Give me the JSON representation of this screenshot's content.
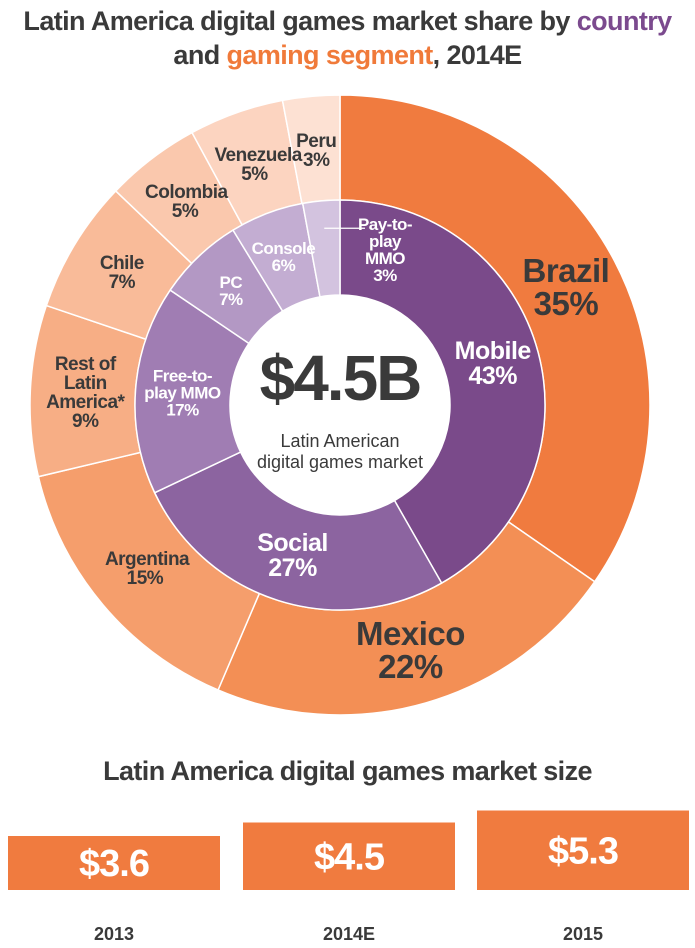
{
  "chart_data": [
    {
      "type": "donut",
      "title": [
        "Latin America digital games market share by ",
        "country",
        " and ",
        "gaming segment",
        ", 2014E"
      ],
      "title_colors": [
        "#3a3a3a",
        "#7b4a8e",
        "#3a3a3a",
        "#f07a3a",
        "#3a3a3a"
      ],
      "center_value": "$4.5B",
      "center_label": "Latin American digital games market",
      "outer": {
        "categories": [
          "Brazil",
          "Mexico",
          "Argentina",
          "Rest of Latin America*",
          "Chile",
          "Colombia",
          "Venezuela",
          "Peru"
        ],
        "values": [
          35,
          22,
          15,
          9,
          7,
          5,
          5,
          3
        ],
        "value_labels": [
          "35%",
          "22%",
          "15%",
          "9%",
          "7%",
          "5%",
          "5%",
          "3%"
        ],
        "colors": [
          "#f07b3f",
          "#f38f55",
          "#f59e6c",
          "#f7ae85",
          "#f9bb99",
          "#fac8ad",
          "#fcd4c0",
          "#fde1d3"
        ]
      },
      "inner": {
        "categories": [
          "Mobile",
          "Social",
          "Free-to-play MMO",
          "PC",
          "Console",
          "Pay-to-play MMO"
        ],
        "values": [
          43,
          27,
          17,
          7,
          6,
          3
        ],
        "value_labels": [
          "43%",
          "27%",
          "17%",
          "7%",
          "6%",
          "3%"
        ],
        "colors": [
          "#7a4a8a",
          "#8c64a0",
          "#a07db3",
          "#b398c4",
          "#c3add2",
          "#d3c3df"
        ]
      }
    },
    {
      "type": "bar",
      "title": "Latin America digital games market size",
      "categories": [
        "2013",
        "2014E",
        "2015"
      ],
      "values": [
        3.6,
        4.5,
        5.3
      ],
      "value_labels": [
        "$3.6",
        "$4.5",
        "$5.3"
      ],
      "color": "#f07b3f"
    }
  ]
}
